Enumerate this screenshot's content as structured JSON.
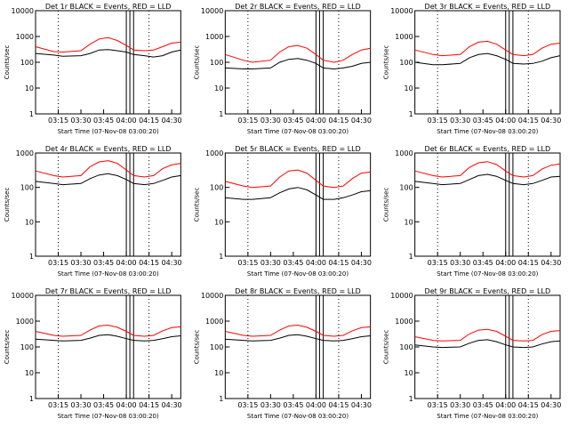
{
  "colors": {
    "background": "#ffffff",
    "axes": "#000000",
    "events": "#000000",
    "lld": "#ff0000"
  },
  "chart_data": [
    {
      "type": "line",
      "title": "Det 1r BLACK = Events, RED = LLD",
      "xlabel": "Start Time (07-Nov-08 03:00:20)",
      "ylabel": "Counts/sec",
      "yscale": "log",
      "ylim": [
        1,
        10000
      ],
      "xlim": [
        3.0,
        4.6
      ],
      "xticks": [
        "03:15",
        "03:30",
        "03:45",
        "04:00",
        "04:15",
        "04:30"
      ],
      "yticks": [
        "1",
        "10",
        "100",
        "1000",
        "10000"
      ],
      "grid": false,
      "gap_x": [
        4.0,
        4.08
      ],
      "series": [
        {
          "name": "Events",
          "color": "#000000",
          "x": [
            3.0,
            3.2,
            3.3,
            3.5,
            3.6,
            3.7,
            3.8,
            3.9,
            4.0,
            4.08,
            4.2,
            4.3,
            4.4,
            4.5,
            4.6
          ],
          "y": [
            220,
            190,
            170,
            180,
            220,
            300,
            310,
            280,
            250,
            200,
            180,
            160,
            180,
            250,
            300
          ]
        },
        {
          "name": "LLD",
          "color": "#ff0000",
          "x": [
            3.0,
            3.2,
            3.3,
            3.5,
            3.6,
            3.7,
            3.8,
            3.9,
            4.0,
            4.08,
            4.2,
            4.3,
            4.4,
            4.5,
            4.6
          ],
          "y": [
            400,
            260,
            250,
            280,
            500,
            800,
            900,
            700,
            450,
            300,
            280,
            300,
            400,
            550,
            600
          ]
        }
      ]
    },
    {
      "type": "line",
      "title": "Det 2r BLACK = Events, RED = LLD",
      "xlabel": "Start Time (07-Nov-08 03:00:20)",
      "ylabel": "Counts/sec",
      "yscale": "log",
      "ylim": [
        1,
        10000
      ],
      "xlim": [
        3.0,
        4.6
      ],
      "xticks": [
        "03:15",
        "03:30",
        "03:45",
        "04:00",
        "04:15",
        "04:30"
      ],
      "yticks": [
        "1",
        "10",
        "100",
        "1000",
        "10000"
      ],
      "grid": false,
      "gap_x": [
        4.0,
        4.08
      ],
      "series": [
        {
          "name": "Events",
          "color": "#000000",
          "x": [
            3.0,
            3.2,
            3.3,
            3.5,
            3.6,
            3.7,
            3.8,
            3.9,
            4.0,
            4.08,
            4.2,
            4.3,
            4.4,
            4.5,
            4.6
          ],
          "y": [
            60,
            55,
            55,
            60,
            100,
            130,
            140,
            120,
            90,
            60,
            55,
            60,
            70,
            90,
            100
          ]
        },
        {
          "name": "LLD",
          "color": "#ff0000",
          "x": [
            3.0,
            3.2,
            3.3,
            3.5,
            3.6,
            3.7,
            3.8,
            3.9,
            4.0,
            4.08,
            4.2,
            4.3,
            4.4,
            4.5,
            4.6
          ],
          "y": [
            200,
            120,
            100,
            120,
            250,
            400,
            450,
            350,
            200,
            120,
            100,
            120,
            200,
            300,
            350
          ]
        }
      ]
    },
    {
      "type": "line",
      "title": "Det 3r BLACK = Events, RED = LLD",
      "xlabel": "Start Time (07-Nov-08 03:00:20)",
      "ylabel": "Counts/sec",
      "yscale": "log",
      "ylim": [
        1,
        10000
      ],
      "xlim": [
        3.0,
        4.6
      ],
      "xticks": [
        "03:15",
        "03:30",
        "03:45",
        "04:00",
        "04:15",
        "04:30"
      ],
      "yticks": [
        "1",
        "10",
        "100",
        "1000",
        "10000"
      ],
      "grid": false,
      "gap_x": [
        4.0,
        4.08
      ],
      "series": [
        {
          "name": "Events",
          "color": "#000000",
          "x": [
            3.0,
            3.2,
            3.3,
            3.5,
            3.6,
            3.7,
            3.8,
            3.9,
            4.0,
            4.08,
            4.2,
            4.3,
            4.4,
            4.5,
            4.6
          ],
          "y": [
            100,
            80,
            80,
            90,
            150,
            200,
            220,
            180,
            130,
            90,
            85,
            90,
            110,
            150,
            180
          ]
        },
        {
          "name": "LLD",
          "color": "#ff0000",
          "x": [
            3.0,
            3.2,
            3.3,
            3.5,
            3.6,
            3.7,
            3.8,
            3.9,
            4.0,
            4.08,
            4.2,
            4.3,
            4.4,
            4.5,
            4.6
          ],
          "y": [
            300,
            200,
            180,
            200,
            400,
            600,
            650,
            500,
            300,
            200,
            180,
            200,
            350,
            500,
            550
          ]
        }
      ]
    },
    {
      "type": "line",
      "title": "Det 4r BLACK = Events, RED = LLD",
      "xlabel": "Start Time (07-Nov-08 03:00:20)",
      "ylabel": "Counts/sec",
      "yscale": "log",
      "ylim": [
        1,
        1000
      ],
      "xlim": [
        3.0,
        4.6
      ],
      "xticks": [
        "03:15",
        "03:30",
        "03:45",
        "04:00",
        "04:15",
        "04:30"
      ],
      "yticks": [
        "1",
        "10",
        "100",
        "1000"
      ],
      "grid": false,
      "gap_x": [
        4.0,
        4.08
      ],
      "series": [
        {
          "name": "Events",
          "color": "#000000",
          "x": [
            3.0,
            3.2,
            3.3,
            3.5,
            3.6,
            3.7,
            3.8,
            3.9,
            4.0,
            4.08,
            4.2,
            4.3,
            4.4,
            4.5,
            4.6
          ],
          "y": [
            150,
            130,
            120,
            130,
            180,
            230,
            250,
            220,
            170,
            130,
            120,
            130,
            160,
            200,
            220
          ]
        },
        {
          "name": "LLD",
          "color": "#ff0000",
          "x": [
            3.0,
            3.2,
            3.3,
            3.5,
            3.6,
            3.7,
            3.8,
            3.9,
            4.0,
            4.08,
            4.2,
            4.3,
            4.4,
            4.5,
            4.6
          ],
          "y": [
            300,
            220,
            200,
            220,
            400,
            550,
            600,
            500,
            320,
            220,
            200,
            220,
            350,
            450,
            500
          ]
        }
      ]
    },
    {
      "type": "line",
      "title": "Det 5r BLACK = Events, RED = LLD",
      "xlabel": "Start Time (07-Nov-08 03:00:20)",
      "ylabel": "Counts/sec",
      "yscale": "log",
      "ylim": [
        1,
        1000
      ],
      "xlim": [
        3.0,
        4.6
      ],
      "xticks": [
        "03:15",
        "03:30",
        "03:45",
        "04:00",
        "04:15",
        "04:30"
      ],
      "yticks": [
        "1",
        "10",
        "100",
        "1000"
      ],
      "grid": false,
      "gap_x": [
        4.0,
        4.08
      ],
      "series": [
        {
          "name": "Events",
          "color": "#000000",
          "x": [
            3.0,
            3.2,
            3.3,
            3.5,
            3.6,
            3.7,
            3.8,
            3.9,
            4.0,
            4.08,
            4.2,
            4.3,
            4.4,
            4.5,
            4.6
          ],
          "y": [
            50,
            45,
            45,
            50,
            70,
            90,
            100,
            85,
            60,
            45,
            45,
            50,
            60,
            75,
            80
          ]
        },
        {
          "name": "LLD",
          "color": "#ff0000",
          "x": [
            3.0,
            3.2,
            3.3,
            3.5,
            3.6,
            3.7,
            3.8,
            3.9,
            4.0,
            4.08,
            4.2,
            4.3,
            4.4,
            4.5,
            4.6
          ],
          "y": [
            150,
            110,
            100,
            110,
            200,
            300,
            320,
            260,
            160,
            110,
            100,
            110,
            180,
            260,
            280
          ]
        }
      ]
    },
    {
      "type": "line",
      "title": "Det 6r BLACK = Events, RED = LLD",
      "xlabel": "Start Time (07-Nov-08 03:00:20)",
      "ylabel": "Counts/sec",
      "yscale": "log",
      "ylim": [
        1,
        1000
      ],
      "xlim": [
        3.0,
        4.6
      ],
      "xticks": [
        "03:15",
        "03:30",
        "03:45",
        "04:00",
        "04:15",
        "04:30"
      ],
      "yticks": [
        "1",
        "10",
        "100",
        "1000"
      ],
      "grid": false,
      "gap_x": [
        4.0,
        4.08
      ],
      "series": [
        {
          "name": "Events",
          "color": "#000000",
          "x": [
            3.0,
            3.2,
            3.3,
            3.5,
            3.6,
            3.7,
            3.8,
            3.9,
            4.0,
            4.08,
            4.2,
            4.3,
            4.4,
            4.5,
            4.6
          ],
          "y": [
            150,
            130,
            120,
            130,
            170,
            220,
            240,
            210,
            160,
            130,
            120,
            130,
            160,
            200,
            210
          ]
        },
        {
          "name": "LLD",
          "color": "#ff0000",
          "x": [
            3.0,
            3.2,
            3.3,
            3.5,
            3.6,
            3.7,
            3.8,
            3.9,
            4.0,
            4.08,
            4.2,
            4.3,
            4.4,
            4.5,
            4.6
          ],
          "y": [
            300,
            220,
            200,
            220,
            380,
            520,
            560,
            460,
            300,
            220,
            200,
            220,
            340,
            440,
            480
          ]
        }
      ]
    },
    {
      "type": "line",
      "title": "Det 7r BLACK = Events, RED = LLD",
      "xlabel": "Start Time (07-Nov-08 03:00:20)",
      "ylabel": "Counts/sec",
      "yscale": "log",
      "ylim": [
        1,
        10000
      ],
      "xlim": [
        3.0,
        4.6
      ],
      "xticks": [
        "03:15",
        "03:30",
        "03:45",
        "04:00",
        "04:15",
        "04:30"
      ],
      "yticks": [
        "1",
        "10",
        "100",
        "1000",
        "10000"
      ],
      "grid": false,
      "gap_x": [
        4.0,
        4.08
      ],
      "series": [
        {
          "name": "Events",
          "color": "#000000",
          "x": [
            3.0,
            3.2,
            3.3,
            3.5,
            3.6,
            3.7,
            3.8,
            3.9,
            4.0,
            4.08,
            4.2,
            4.3,
            4.4,
            4.5,
            4.6
          ],
          "y": [
            200,
            180,
            170,
            180,
            220,
            280,
            300,
            260,
            210,
            180,
            170,
            180,
            210,
            250,
            270
          ]
        },
        {
          "name": "LLD",
          "color": "#ff0000",
          "x": [
            3.0,
            3.2,
            3.3,
            3.5,
            3.6,
            3.7,
            3.8,
            3.9,
            4.0,
            4.08,
            4.2,
            4.3,
            4.4,
            4.5,
            4.6
          ],
          "y": [
            400,
            280,
            260,
            280,
            450,
            650,
            700,
            580,
            400,
            280,
            260,
            280,
            420,
            560,
            600
          ]
        }
      ]
    },
    {
      "type": "line",
      "title": "Det 8r BLACK = Events, RED = LLD",
      "xlabel": "Start Time (07-Nov-08 03:00:20)",
      "ylabel": "Counts/sec",
      "yscale": "log",
      "ylim": [
        1,
        10000
      ],
      "xlim": [
        3.0,
        4.6
      ],
      "xticks": [
        "03:15",
        "03:30",
        "03:45",
        "04:00",
        "04:15",
        "04:30"
      ],
      "yticks": [
        "1",
        "10",
        "100",
        "1000",
        "10000"
      ],
      "grid": false,
      "gap_x": [
        4.0,
        4.08
      ],
      "series": [
        {
          "name": "Events",
          "color": "#000000",
          "x": [
            3.0,
            3.2,
            3.3,
            3.5,
            3.6,
            3.7,
            3.8,
            3.9,
            4.0,
            4.08,
            4.2,
            4.3,
            4.4,
            4.5,
            4.6
          ],
          "y": [
            200,
            180,
            170,
            180,
            220,
            280,
            300,
            260,
            210,
            180,
            170,
            180,
            210,
            250,
            270
          ]
        },
        {
          "name": "LLD",
          "color": "#ff0000",
          "x": [
            3.0,
            3.2,
            3.3,
            3.5,
            3.6,
            3.7,
            3.8,
            3.9,
            4.0,
            4.08,
            4.2,
            4.3,
            4.4,
            4.5,
            4.6
          ],
          "y": [
            400,
            280,
            260,
            280,
            450,
            650,
            700,
            580,
            400,
            280,
            260,
            280,
            420,
            560,
            600
          ]
        }
      ]
    },
    {
      "type": "line",
      "title": "Det 9r BLACK = Events, RED = LLD",
      "xlabel": "Start Time (07-Nov-08 03:00:20)",
      "ylabel": "Counts/sec",
      "yscale": "log",
      "ylim": [
        1,
        10000
      ],
      "xlim": [
        3.0,
        4.6
      ],
      "xticks": [
        "03:15",
        "03:30",
        "03:45",
        "04:00",
        "04:15",
        "04:30"
      ],
      "yticks": [
        "1",
        "10",
        "100",
        "1000",
        "10000"
      ],
      "grid": false,
      "gap_x": [
        4.0,
        4.08
      ],
      "series": [
        {
          "name": "Events",
          "color": "#000000",
          "x": [
            3.0,
            3.2,
            3.3,
            3.5,
            3.6,
            3.7,
            3.8,
            3.9,
            4.0,
            4.08,
            4.2,
            4.3,
            4.4,
            4.5,
            4.6
          ],
          "y": [
            120,
            100,
            95,
            100,
            140,
            180,
            190,
            160,
            120,
            100,
            95,
            100,
            130,
            160,
            170
          ]
        },
        {
          "name": "LLD",
          "color": "#ff0000",
          "x": [
            3.0,
            3.2,
            3.3,
            3.5,
            3.6,
            3.7,
            3.8,
            3.9,
            4.0,
            4.08,
            4.2,
            4.3,
            4.4,
            4.5,
            4.6
          ],
          "y": [
            250,
            180,
            170,
            180,
            320,
            450,
            480,
            400,
            260,
            180,
            170,
            180,
            300,
            400,
            430
          ]
        }
      ]
    }
  ]
}
